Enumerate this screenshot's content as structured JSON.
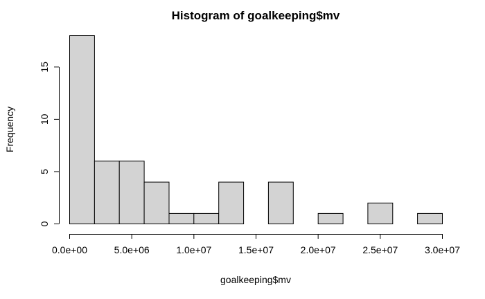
{
  "chart_data": {
    "type": "bar",
    "title": "Histogram of goalkeeping$mv",
    "xlabel": "goalkeeping$mv",
    "ylabel": "Frequency",
    "bin_edges": [
      0,
      2000000,
      4000000,
      6000000,
      8000000,
      10000000,
      12000000,
      14000000,
      16000000,
      18000000,
      20000000,
      22000000,
      24000000,
      26000000,
      28000000,
      30000000
    ],
    "values": [
      18,
      6,
      6,
      4,
      1,
      1,
      4,
      0,
      4,
      0,
      1,
      0,
      2,
      0,
      1
    ],
    "xlim": [
      0,
      30000000
    ],
    "ylim": [
      0,
      18
    ],
    "x_ticks": [
      0,
      5000000,
      10000000,
      15000000,
      20000000,
      25000000,
      30000000
    ],
    "x_tick_labels": [
      "0.0e+00",
      "5.0e+06",
      "1.0e+07",
      "1.5e+07",
      "2.0e+07",
      "2.5e+07",
      "3.0e+07"
    ],
    "y_ticks": [
      0,
      5,
      10,
      15
    ],
    "y_tick_labels": [
      "0",
      "5",
      "10",
      "15"
    ],
    "grid": false,
    "bar_color": "#d3d3d3",
    "border_color": "#000000"
  }
}
